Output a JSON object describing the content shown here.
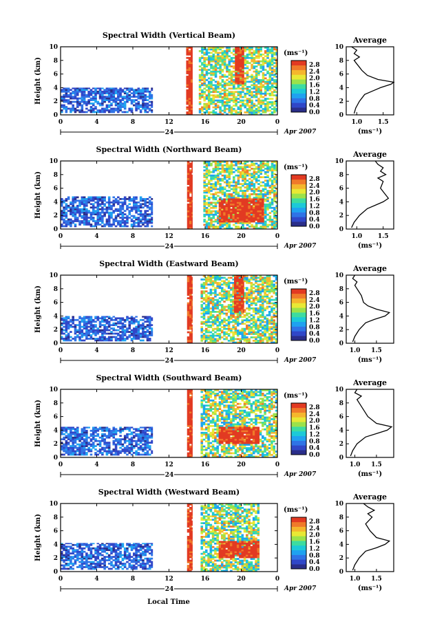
{
  "figure": {
    "xlabel": "Local Time",
    "date_label": "Apr 2007",
    "day_label": "24",
    "average_title": "Average",
    "unit_label": "(ms⁻¹)",
    "colorbar_labels": [
      "2.8",
      "2.4",
      "2.0",
      "1.6",
      "1.2",
      "0.8",
      "0.4",
      "0.0"
    ],
    "colormap": [
      "#2a2e8a",
      "#3047c8",
      "#2f73e6",
      "#1fa2f0",
      "#1cc9d8",
      "#3ddca0",
      "#9be24a",
      "#e8e835",
      "#f5b62d",
      "#f07a2a",
      "#e23a22"
    ]
  },
  "chart_data": [
    {
      "type": "heatmap",
      "title": "Spectral Width (Vertical Beam)",
      "ylabel": "Height (km)",
      "xlabel": "Local Time",
      "xlim": [
        0,
        24
      ],
      "ylim": [
        0,
        10
      ],
      "x_ticks": [
        "0",
        "4",
        "8",
        "12",
        "16",
        "20",
        "0"
      ],
      "y_ticks": [
        "0",
        "2",
        "4",
        "6",
        "8",
        "10"
      ],
      "colorbar": {
        "label": "(ms⁻¹)",
        "range": [
          0.0,
          2.8
        ]
      },
      "regions": [
        {
          "x": [
            0,
            10.2
          ],
          "y": [
            0.3,
            4.0
          ],
          "value": 0.4,
          "desc": "low-level boundary layer echoes"
        },
        {
          "x": [
            13.9,
            14.6
          ],
          "y": [
            0,
            10
          ],
          "value": 2.8,
          "desc": "high spectral width band"
        },
        {
          "x": [
            15.3,
            24
          ],
          "y": [
            0,
            10
          ],
          "value": 1.6,
          "desc": "mixed afternoon echoes"
        },
        {
          "x": [
            19.3,
            20.3
          ],
          "y": [
            4.5,
            10
          ],
          "value": 2.8,
          "desc": "convective column"
        }
      ],
      "average_profile": {
        "xlabel": "(ms⁻¹)",
        "xlim": [
          0.8,
          1.7
        ],
        "x_ticks": [
          "1.0",
          "1.5"
        ],
        "y_ticks": [
          "0",
          "2",
          "4",
          "6",
          "8",
          "10"
        ],
        "height": [
          0.2,
          1.0,
          2.0,
          3.0,
          3.5,
          4.0,
          4.5,
          4.8,
          5.2,
          5.8,
          6.5,
          7.0,
          7.5,
          8.0,
          8.5,
          9.0,
          9.5,
          10.0
        ],
        "value": [
          0.95,
          0.98,
          1.05,
          1.15,
          1.3,
          1.45,
          1.65,
          1.7,
          1.4,
          1.2,
          1.1,
          1.05,
          1.0,
          0.95,
          1.05,
          0.95,
          1.0,
          0.9
        ]
      }
    },
    {
      "type": "heatmap",
      "title": "Spectral Width (Northward Beam)",
      "ylabel": "Height (km)",
      "xlabel": "Local Time",
      "xlim": [
        0,
        24
      ],
      "ylim": [
        0,
        10
      ],
      "x_ticks": [
        "0",
        "4",
        "8",
        "12",
        "16",
        "20",
        "0"
      ],
      "y_ticks": [
        "0",
        "2",
        "4",
        "6",
        "8",
        "10"
      ],
      "colorbar": {
        "label": "(ms⁻¹)",
        "range": [
          0.0,
          2.8
        ]
      },
      "regions": [
        {
          "x": [
            0,
            10.2
          ],
          "y": [
            0.3,
            4.8
          ],
          "value": 0.4,
          "desc": "low-level boundary layer echoes"
        },
        {
          "x": [
            14.0,
            14.6
          ],
          "y": [
            0,
            10
          ],
          "value": 2.8,
          "desc": "high spectral width band"
        },
        {
          "x": [
            15.8,
            24
          ],
          "y": [
            0,
            10
          ],
          "value": 1.6,
          "desc": "mixed afternoon echoes"
        },
        {
          "x": [
            17.5,
            22.5
          ],
          "y": [
            1.0,
            4.5
          ],
          "value": 2.8,
          "desc": "high width layer"
        }
      ],
      "average_profile": {
        "xlabel": "(ms⁻¹)",
        "xlim": [
          0.8,
          1.7
        ],
        "x_ticks": [
          "1.0",
          "1.5"
        ],
        "y_ticks": [
          "0",
          "2",
          "4",
          "6",
          "8",
          "10"
        ],
        "height": [
          0.2,
          1.0,
          2.0,
          3.0,
          3.5,
          4.0,
          4.5,
          5.0,
          6.0,
          7.0,
          7.5,
          8.0,
          8.5,
          9.0,
          9.5,
          10.0
        ],
        "value": [
          0.9,
          0.95,
          1.05,
          1.2,
          1.35,
          1.5,
          1.6,
          1.55,
          1.45,
          1.5,
          1.4,
          1.55,
          1.45,
          1.5,
          1.4,
          1.35
        ]
      }
    },
    {
      "type": "heatmap",
      "title": "Spectral Width (Eastward Beam)",
      "ylabel": "Height (km)",
      "xlabel": "Local Time",
      "xlim": [
        0,
        24
      ],
      "ylim": [
        0,
        10
      ],
      "x_ticks": [
        "0",
        "4",
        "8",
        "12",
        "16",
        "20",
        "0"
      ],
      "y_ticks": [
        "0",
        "2",
        "4",
        "6",
        "8",
        "10"
      ],
      "colorbar": {
        "label": "(ms⁻¹)",
        "range": [
          0.0,
          2.8
        ]
      },
      "regions": [
        {
          "x": [
            0,
            10.2
          ],
          "y": [
            0.3,
            4.0
          ],
          "value": 0.4,
          "desc": "low-level boundary layer echoes"
        },
        {
          "x": [
            14.0,
            14.6
          ],
          "y": [
            0,
            10
          ],
          "value": 2.8,
          "desc": "high spectral width band"
        },
        {
          "x": [
            15.5,
            24
          ],
          "y": [
            0,
            10
          ],
          "value": 1.6,
          "desc": "mixed afternoon echoes"
        },
        {
          "x": [
            19.2,
            20.3
          ],
          "y": [
            4.5,
            10
          ],
          "value": 2.8,
          "desc": "convective column"
        }
      ],
      "average_profile": {
        "xlabel": "(ms⁻¹)",
        "xlim": [
          0.8,
          1.9
        ],
        "x_ticks": [
          "1.0",
          "1.5"
        ],
        "y_ticks": [
          "0",
          "2",
          "4",
          "6",
          "8",
          "10"
        ],
        "height": [
          0.2,
          1.0,
          2.0,
          3.0,
          3.5,
          4.0,
          4.5,
          5.0,
          5.5,
          6.0,
          7.0,
          8.0,
          8.5,
          9.0,
          9.5,
          10.0
        ],
        "value": [
          0.95,
          1.0,
          1.1,
          1.25,
          1.45,
          1.7,
          1.8,
          1.5,
          1.3,
          1.2,
          1.15,
          1.05,
          1.0,
          1.05,
          0.95,
          1.0
        ]
      }
    },
    {
      "type": "heatmap",
      "title": "Spectral Width (Southward Beam)",
      "ylabel": "Height (km)",
      "xlabel": "Local Time",
      "xlim": [
        0,
        24
      ],
      "ylim": [
        0,
        10
      ],
      "x_ticks": [
        "0",
        "4",
        "8",
        "12",
        "16",
        "20",
        "0"
      ],
      "y_ticks": [
        "0",
        "2",
        "4",
        "6",
        "8",
        "10"
      ],
      "colorbar": {
        "label": "(ms⁻¹)",
        "range": [
          0.0,
          2.8
        ]
      },
      "regions": [
        {
          "x": [
            0,
            10.2
          ],
          "y": [
            0.3,
            4.5
          ],
          "value": 0.4,
          "desc": "low-level boundary layer echoes"
        },
        {
          "x": [
            14.0,
            14.6
          ],
          "y": [
            0,
            10
          ],
          "value": 2.8,
          "desc": "high spectral width band"
        },
        {
          "x": [
            15.5,
            24
          ],
          "y": [
            0,
            10
          ],
          "value": 1.6,
          "desc": "mixed afternoon echoes"
        },
        {
          "x": [
            17.5,
            22.0
          ],
          "y": [
            2.0,
            4.5
          ],
          "value": 2.8,
          "desc": "high width layer"
        }
      ],
      "average_profile": {
        "xlabel": "(ms⁻¹)",
        "xlim": [
          0.8,
          1.9
        ],
        "x_ticks": [
          "1.0",
          "1.5"
        ],
        "y_ticks": [
          "0",
          "2",
          "4",
          "6",
          "8",
          "10"
        ],
        "height": [
          0.2,
          1.0,
          2.0,
          3.0,
          3.5,
          4.0,
          4.5,
          5.0,
          6.0,
          7.0,
          8.0,
          8.5,
          9.0,
          9.5,
          10.0
        ],
        "value": [
          0.9,
          0.95,
          1.05,
          1.25,
          1.5,
          1.75,
          1.85,
          1.5,
          1.3,
          1.2,
          1.1,
          1.05,
          1.15,
          1.0,
          1.05
        ]
      }
    },
    {
      "type": "heatmap",
      "title": "Spectral Width (Westward Beam)",
      "ylabel": "Height (km)",
      "xlabel": "Local Time",
      "xlim": [
        0,
        24
      ],
      "ylim": [
        0,
        10
      ],
      "x_ticks": [
        "0",
        "4",
        "8",
        "12",
        "16",
        "20",
        "0"
      ],
      "y_ticks": [
        "0",
        "2",
        "4",
        "6",
        "8",
        "10"
      ],
      "colorbar": {
        "label": "(ms⁻¹)",
        "range": [
          0.0,
          2.8
        ]
      },
      "regions": [
        {
          "x": [
            0,
            10.2
          ],
          "y": [
            0.3,
            4.2
          ],
          "value": 0.4,
          "desc": "low-level boundary layer echoes"
        },
        {
          "x": [
            14.0,
            14.6
          ],
          "y": [
            0,
            10
          ],
          "value": 2.8,
          "desc": "high spectral width band"
        },
        {
          "x": [
            15.5,
            22.0
          ],
          "y": [
            0,
            10
          ],
          "value": 1.6,
          "desc": "mixed afternoon echoes"
        },
        {
          "x": [
            17.5,
            22.0
          ],
          "y": [
            2.0,
            4.5
          ],
          "value": 2.8,
          "desc": "high width layer"
        }
      ],
      "average_profile": {
        "xlabel": "(ms⁻¹)",
        "xlim": [
          0.8,
          1.9
        ],
        "x_ticks": [
          "1.0",
          "1.5"
        ],
        "y_ticks": [
          "0",
          "2",
          "4",
          "6",
          "8",
          "10"
        ],
        "height": [
          0.2,
          1.0,
          2.0,
          3.0,
          3.5,
          4.0,
          4.5,
          5.0,
          6.0,
          7.0,
          8.0,
          8.5,
          9.0,
          9.5,
          10.0
        ],
        "value": [
          0.95,
          1.0,
          1.1,
          1.25,
          1.5,
          1.7,
          1.8,
          1.5,
          1.35,
          1.25,
          1.4,
          1.3,
          1.45,
          1.3,
          1.2
        ]
      }
    }
  ]
}
